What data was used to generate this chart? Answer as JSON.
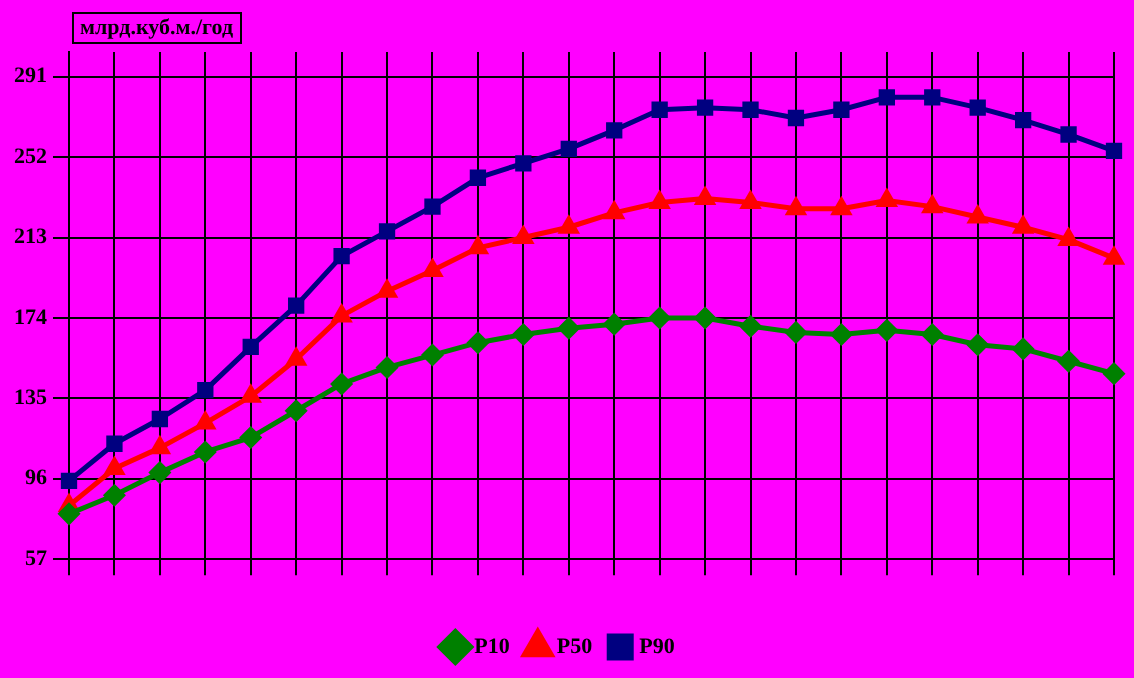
{
  "chart_data": {
    "type": "line",
    "ylabel": "млрд.куб.м./год",
    "categories": [
      null,
      null,
      null,
      null,
      null,
      null,
      null,
      null,
      null,
      null,
      null,
      null,
      null,
      null,
      null,
      null,
      null,
      null,
      null,
      null,
      null,
      null,
      null,
      null
    ],
    "series": [
      {
        "name": "P10",
        "color": "#008000",
        "marker": "diamond",
        "values": [
          79,
          88,
          99,
          109,
          116,
          129,
          142,
          150,
          156,
          162,
          166,
          169,
          171,
          174,
          174,
          170,
          167,
          166,
          168,
          166,
          161,
          159,
          153,
          147
        ]
      },
      {
        "name": "P50",
        "color": "#ff0000",
        "marker": "triangle",
        "values": [
          83,
          101,
          111,
          123,
          136,
          154,
          175,
          187,
          197,
          208,
          213,
          218,
          225,
          230,
          232,
          230,
          227,
          227,
          231,
          228,
          223,
          218,
          212,
          203
        ]
      },
      {
        "name": "P90",
        "color": "#000080",
        "marker": "square",
        "values": [
          95,
          113,
          125,
          139,
          160,
          180,
          204,
          216,
          228,
          242,
          249,
          256,
          265,
          275,
          276,
          275,
          271,
          275,
          281,
          281,
          276,
          270,
          263,
          255
        ]
      }
    ],
    "ylim": [
      57,
      303
    ],
    "yticks": [
      57,
      96,
      135,
      174,
      213,
      252,
      291
    ],
    "grid": true,
    "legend": "bottom"
  }
}
